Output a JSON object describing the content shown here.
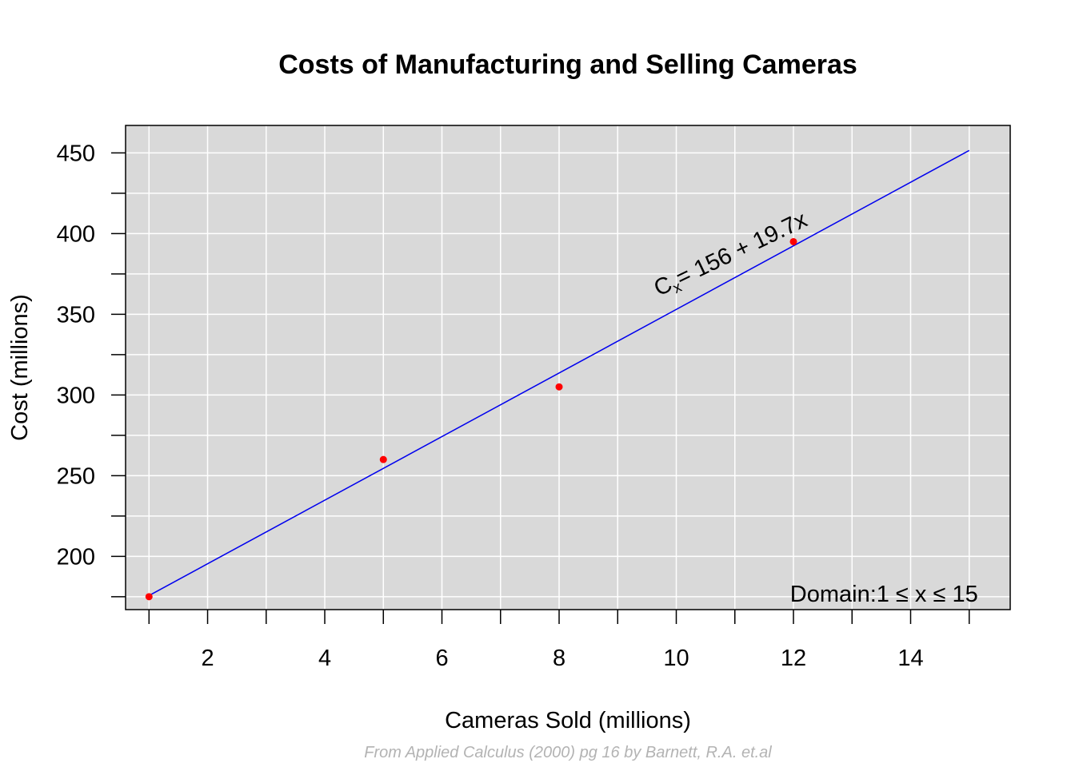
{
  "chart_data": {
    "type": "line",
    "title": "Costs of Manufacturing and Selling Cameras",
    "xlabel": "Cameras Sold (millions)",
    "ylabel": "Cost (millions)",
    "caption": "From Applied Calculus (2000) pg 16 by Barnett, R.A. et.al",
    "xlim": [
      0.6,
      15.7
    ],
    "ylim": [
      167,
      467
    ],
    "x_ticks": [
      2,
      4,
      6,
      8,
      10,
      12,
      14
    ],
    "y_ticks": [
      200,
      250,
      300,
      350,
      400,
      450
    ],
    "x_grid": [
      1,
      2,
      3,
      4,
      5,
      6,
      7,
      8,
      9,
      10,
      11,
      12,
      13,
      14,
      15
    ],
    "y_grid": [
      175,
      200,
      225,
      250,
      275,
      300,
      325,
      350,
      375,
      400,
      425,
      450
    ],
    "grid": true,
    "background": "#d9d9d9",
    "series": [
      {
        "kind": "line",
        "color": "#0000ee",
        "x": [
          1,
          15
        ],
        "y": [
          175.7,
          451.5
        ]
      },
      {
        "kind": "points",
        "color": "#ff0000",
        "x": [
          1,
          5,
          8,
          12
        ],
        "y": [
          175,
          260,
          305,
          395
        ]
      }
    ],
    "annotations": {
      "equation": {
        "lhs": "C",
        "sub": "x",
        "rhs": "= 156 + 19.7x",
        "x": 9.7,
        "y": 361
      },
      "domain": {
        "text": "Domain:1 ≤ x ≤ 15",
        "x": 15.15,
        "y": 172
      }
    }
  }
}
